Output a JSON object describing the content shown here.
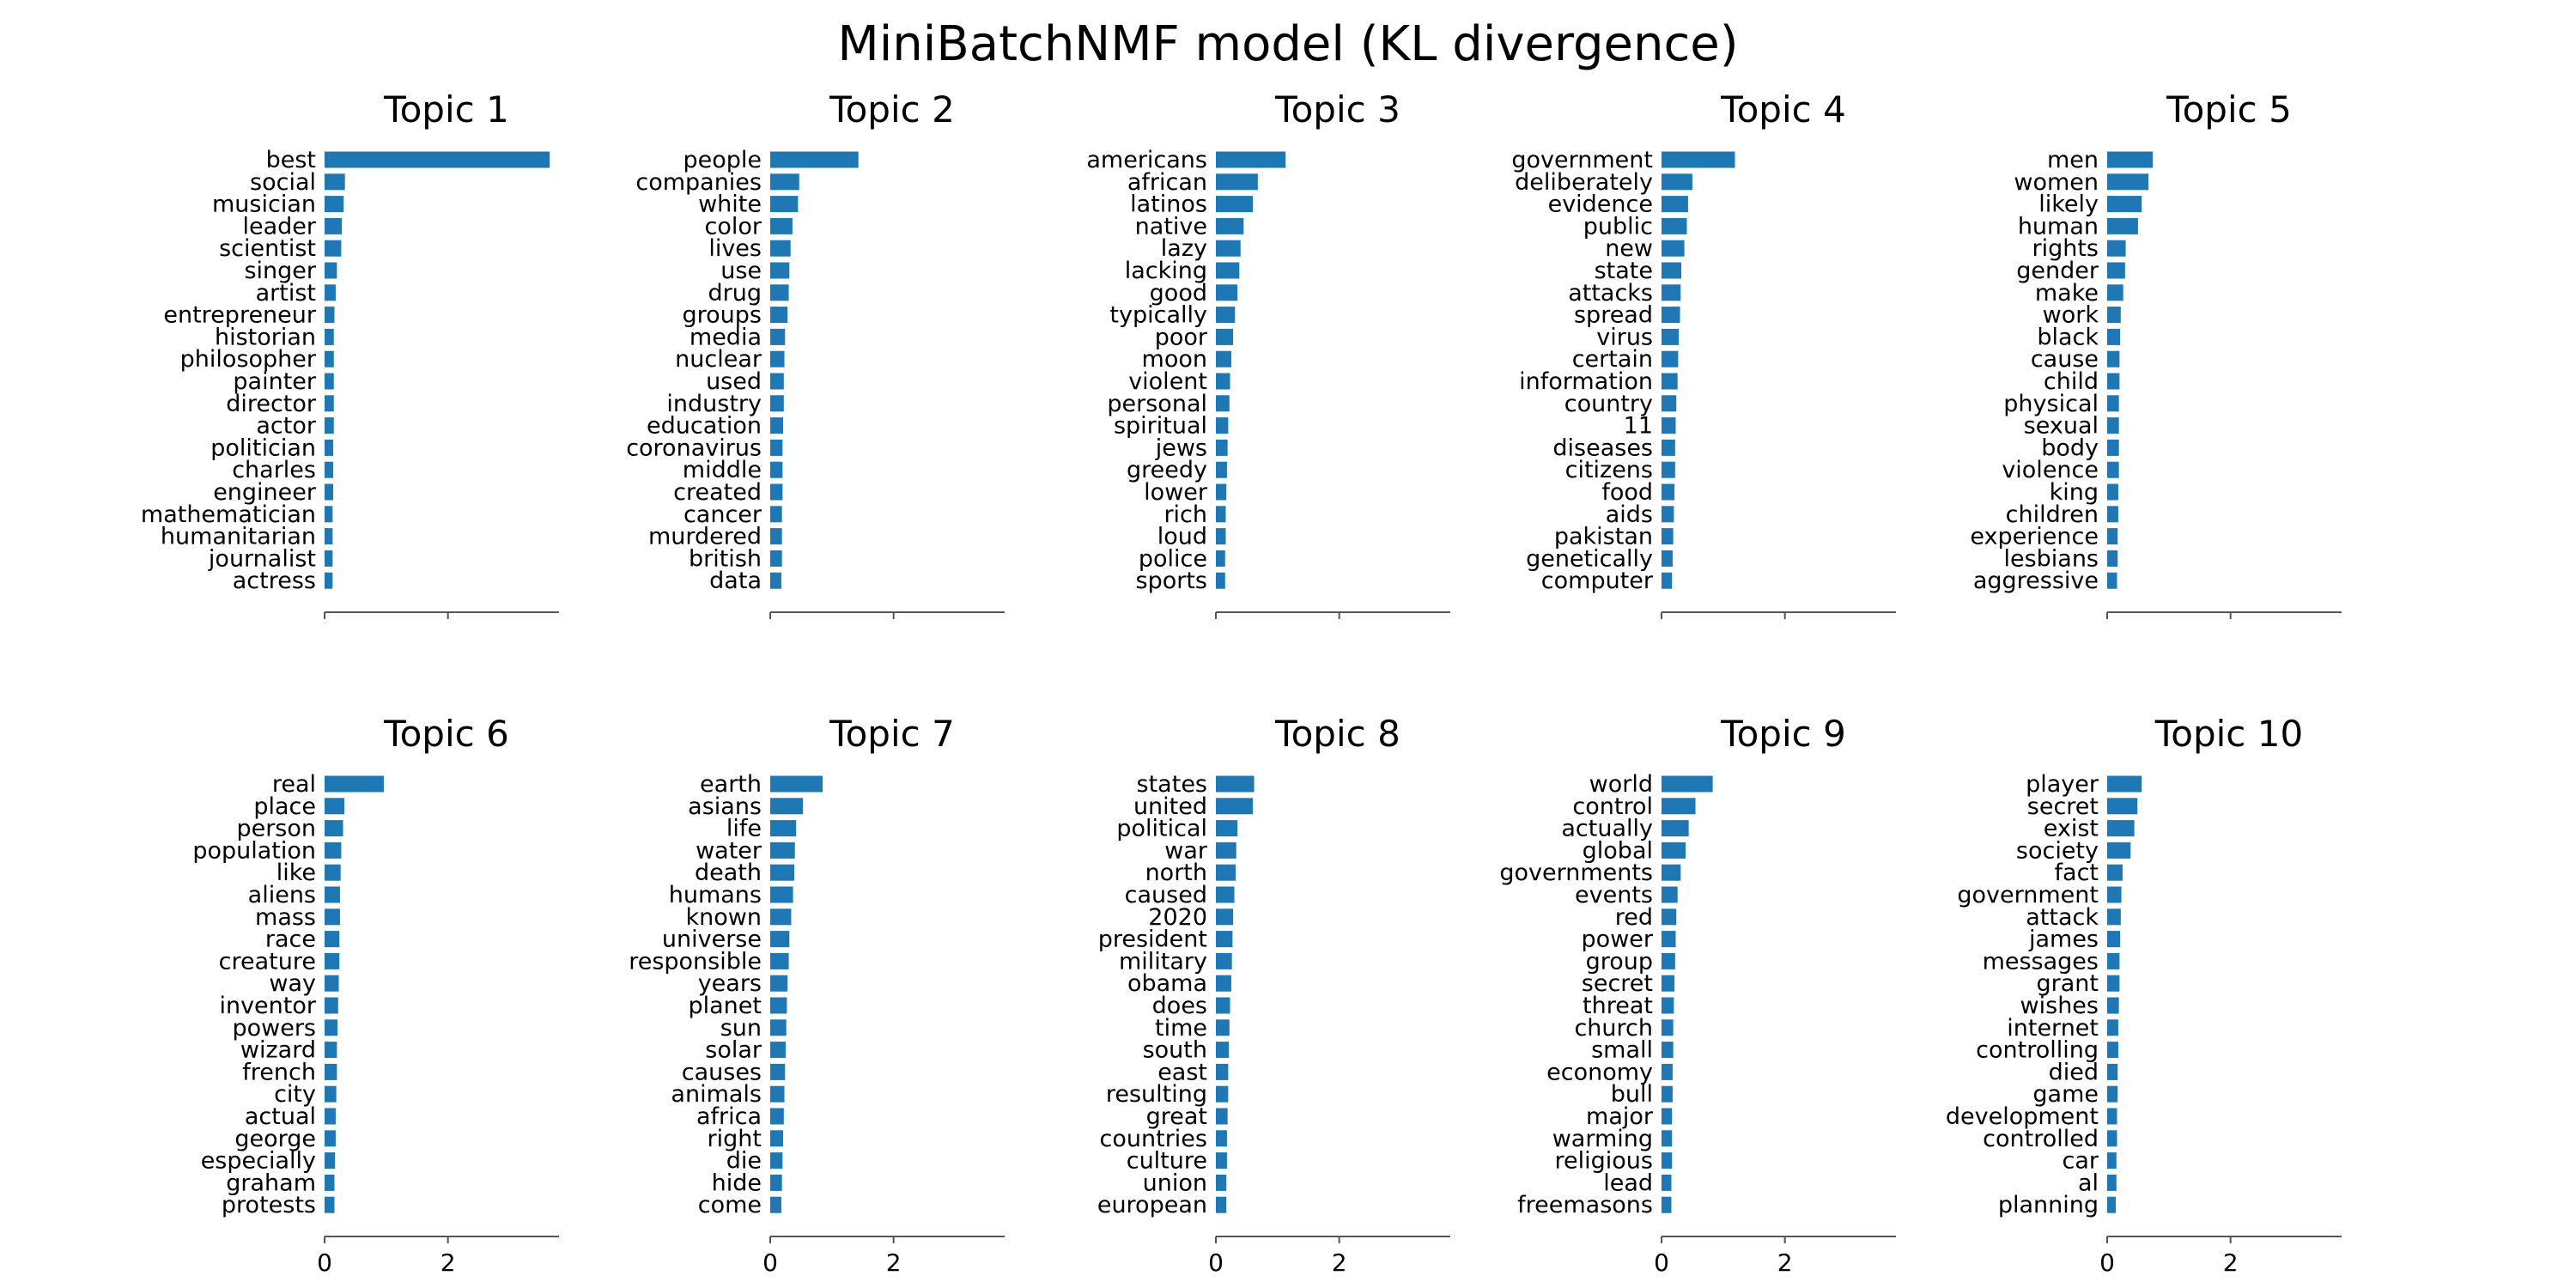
{
  "chart_data": {
    "type": "bar",
    "orientation": "horizontal",
    "title": "MiniBatchNMF model (KL divergence)",
    "xlim": [
      0,
      3.8
    ],
    "xticks": [
      0,
      2
    ],
    "grid": false,
    "panels": [
      {
        "title": "Topic 1",
        "categories": [
          "best",
          "social",
          "musician",
          "leader",
          "scientist",
          "singer",
          "artist",
          "entrepreneur",
          "historian",
          "philosopher",
          "painter",
          "director",
          "actor",
          "politician",
          "charles",
          "engineer",
          "mathematician",
          "humanitarian",
          "journalist",
          "actress"
        ],
        "values": [
          3.65,
          0.33,
          0.31,
          0.28,
          0.27,
          0.2,
          0.18,
          0.16,
          0.15,
          0.15,
          0.15,
          0.15,
          0.15,
          0.14,
          0.14,
          0.14,
          0.13,
          0.13,
          0.13,
          0.13
        ]
      },
      {
        "title": "Topic 2",
        "categories": [
          "people",
          "companies",
          "white",
          "color",
          "lives",
          "use",
          "drug",
          "groups",
          "media",
          "nuclear",
          "used",
          "industry",
          "education",
          "coronavirus",
          "middle",
          "created",
          "cancer",
          "murdered",
          "british",
          "data"
        ],
        "values": [
          1.43,
          0.47,
          0.45,
          0.36,
          0.33,
          0.31,
          0.3,
          0.28,
          0.24,
          0.23,
          0.22,
          0.22,
          0.21,
          0.2,
          0.2,
          0.2,
          0.19,
          0.19,
          0.19,
          0.18
        ]
      },
      {
        "title": "Topic 3",
        "categories": [
          "americans",
          "african",
          "latinos",
          "native",
          "lazy",
          "lacking",
          "good",
          "typically",
          "poor",
          "moon",
          "violent",
          "personal",
          "spiritual",
          "jews",
          "greedy",
          "lower",
          "rich",
          "loud",
          "police",
          "sports"
        ],
        "values": [
          1.13,
          0.68,
          0.6,
          0.45,
          0.4,
          0.38,
          0.35,
          0.31,
          0.28,
          0.25,
          0.23,
          0.22,
          0.2,
          0.19,
          0.18,
          0.17,
          0.16,
          0.16,
          0.15,
          0.15
        ]
      },
      {
        "title": "Topic 4",
        "categories": [
          "government",
          "deliberately",
          "evidence",
          "public",
          "new",
          "state",
          "attacks",
          "spread",
          "virus",
          "certain",
          "information",
          "country",
          "11",
          "diseases",
          "citizens",
          "food",
          "aids",
          "pakistan",
          "genetically",
          "computer"
        ],
        "values": [
          1.19,
          0.5,
          0.43,
          0.41,
          0.37,
          0.32,
          0.31,
          0.3,
          0.28,
          0.27,
          0.26,
          0.24,
          0.23,
          0.22,
          0.22,
          0.21,
          0.2,
          0.19,
          0.18,
          0.17
        ]
      },
      {
        "title": "Topic 5",
        "categories": [
          "men",
          "women",
          "likely",
          "human",
          "rights",
          "gender",
          "make",
          "work",
          "black",
          "cause",
          "child",
          "physical",
          "sexual",
          "body",
          "violence",
          "king",
          "children",
          "experience",
          "lesbians",
          "aggressive"
        ],
        "values": [
          0.74,
          0.67,
          0.56,
          0.5,
          0.3,
          0.29,
          0.26,
          0.22,
          0.21,
          0.2,
          0.2,
          0.19,
          0.19,
          0.19,
          0.19,
          0.18,
          0.18,
          0.17,
          0.17,
          0.16
        ]
      },
      {
        "title": "Topic 6",
        "categories": [
          "real",
          "place",
          "person",
          "population",
          "like",
          "aliens",
          "mass",
          "race",
          "creature",
          "way",
          "inventor",
          "powers",
          "wizard",
          "french",
          "city",
          "actual",
          "george",
          "especially",
          "graham",
          "protests"
        ],
        "values": [
          0.96,
          0.32,
          0.3,
          0.27,
          0.26,
          0.25,
          0.25,
          0.24,
          0.24,
          0.23,
          0.22,
          0.21,
          0.2,
          0.2,
          0.19,
          0.18,
          0.18,
          0.17,
          0.16,
          0.16
        ]
      },
      {
        "title": "Topic 7",
        "categories": [
          "earth",
          "asians",
          "life",
          "water",
          "death",
          "humans",
          "known",
          "universe",
          "responsible",
          "years",
          "planet",
          "sun",
          "solar",
          "causes",
          "animals",
          "africa",
          "right",
          "die",
          "hide",
          "come"
        ],
        "values": [
          0.85,
          0.53,
          0.42,
          0.4,
          0.39,
          0.37,
          0.34,
          0.31,
          0.3,
          0.28,
          0.27,
          0.26,
          0.25,
          0.24,
          0.23,
          0.22,
          0.21,
          0.2,
          0.19,
          0.18
        ]
      },
      {
        "title": "Topic 8",
        "categories": [
          "states",
          "united",
          "political",
          "war",
          "north",
          "caused",
          "2020",
          "president",
          "military",
          "obama",
          "does",
          "time",
          "south",
          "east",
          "resulting",
          "great",
          "countries",
          "culture",
          "union",
          "european"
        ],
        "values": [
          0.62,
          0.6,
          0.35,
          0.33,
          0.32,
          0.3,
          0.28,
          0.27,
          0.26,
          0.25,
          0.23,
          0.22,
          0.21,
          0.2,
          0.2,
          0.19,
          0.18,
          0.18,
          0.17,
          0.17
        ]
      },
      {
        "title": "Topic 9",
        "categories": [
          "world",
          "control",
          "actually",
          "global",
          "governments",
          "events",
          "red",
          "power",
          "group",
          "secret",
          "threat",
          "church",
          "small",
          "economy",
          "bull",
          "major",
          "warming",
          "religious",
          "lead",
          "freemasons"
        ],
        "values": [
          0.83,
          0.55,
          0.44,
          0.39,
          0.31,
          0.26,
          0.24,
          0.23,
          0.22,
          0.21,
          0.2,
          0.19,
          0.19,
          0.18,
          0.18,
          0.17,
          0.17,
          0.17,
          0.16,
          0.16
        ]
      },
      {
        "title": "Topic 10",
        "categories": [
          "player",
          "secret",
          "exist",
          "society",
          "fact",
          "government",
          "attack",
          "james",
          "messages",
          "grant",
          "wishes",
          "internet",
          "controlling",
          "died",
          "game",
          "development",
          "controlled",
          "car",
          "al",
          "planning"
        ],
        "values": [
          0.56,
          0.49,
          0.44,
          0.38,
          0.25,
          0.23,
          0.22,
          0.21,
          0.2,
          0.2,
          0.19,
          0.18,
          0.18,
          0.17,
          0.17,
          0.16,
          0.16,
          0.15,
          0.15,
          0.14
        ]
      }
    ]
  }
}
